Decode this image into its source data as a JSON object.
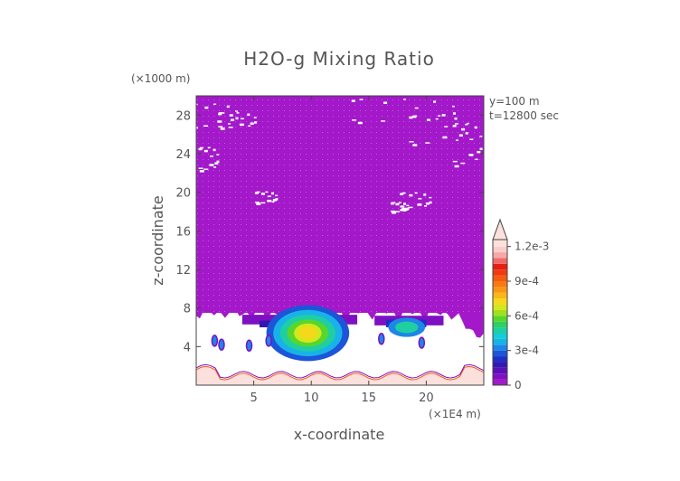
{
  "chart_data": {
    "type": "heatmap",
    "title": "H2O-g Mixing Ratio",
    "xlabel": "x-coordinate",
    "ylabel": "z-coordinate",
    "x_unit": "(×1E4 m)",
    "y_unit": "(×1000 m)",
    "annotations": [
      "y=100 m",
      "t=12800 sec"
    ],
    "x_ticks": [
      5,
      10,
      15,
      20
    ],
    "y_ticks": [
      4,
      8,
      12,
      16,
      20,
      24,
      28
    ],
    "xlim": [
      0,
      25
    ],
    "ylim": [
      0,
      30
    ],
    "colorbar": {
      "ticks": [
        "0",
        "3e-4",
        "6e-4",
        "9e-4",
        "1.2e-3"
      ],
      "tick_values": [
        0,
        0.0003,
        0.0006,
        0.0009,
        0.0012
      ],
      "min": 0,
      "max": 0.00126,
      "extend": "max",
      "levels": [
        {
          "lower": 0.0,
          "color": "#a319c9"
        },
        {
          "lower": 5e-05,
          "color": "#7e10c2"
        },
        {
          "lower": 0.0001,
          "color": "#5a10b8"
        },
        {
          "lower": 0.00015,
          "color": "#3616b0"
        },
        {
          "lower": 0.0002,
          "color": "#1e2fc8"
        },
        {
          "lower": 0.00025,
          "color": "#1c55d8"
        },
        {
          "lower": 0.0003,
          "color": "#1d86e6"
        },
        {
          "lower": 0.00035,
          "color": "#19b2e8"
        },
        {
          "lower": 0.0004,
          "color": "#17ccd6"
        },
        {
          "lower": 0.00045,
          "color": "#1fcfa2"
        },
        {
          "lower": 0.0005,
          "color": "#2fcf62"
        },
        {
          "lower": 0.00055,
          "color": "#57d62c"
        },
        {
          "lower": 0.0006,
          "color": "#9fe01f"
        },
        {
          "lower": 0.00065,
          "color": "#d6e61c"
        },
        {
          "lower": 0.0007,
          "color": "#f6d81b"
        },
        {
          "lower": 0.00075,
          "color": "#f9b718"
        },
        {
          "lower": 0.0008,
          "color": "#f99616"
        },
        {
          "lower": 0.00085,
          "color": "#f87914"
        },
        {
          "lower": 0.0009,
          "color": "#f45a12"
        },
        {
          "lower": 0.00095,
          "color": "#ee3a12"
        },
        {
          "lower": 0.001,
          "color": "#e61e15"
        },
        {
          "lower": 0.00105,
          "color": "#f06a6a"
        },
        {
          "lower": 0.0011,
          "color": "#f6a8a8"
        },
        {
          "lower": 0.00115,
          "color": "#f9cccc"
        },
        {
          "lower": 0.0012,
          "color": "#fbe0dc"
        }
      ]
    },
    "field_regions": [
      {
        "name": "upper-dry-layer",
        "z_range": [
          7.5,
          30
        ],
        "value": 2e-05,
        "note_color": "#a319c9"
      },
      {
        "name": "moist-plume-core",
        "x": 9.5,
        "z": 4.5,
        "value": 0.0007
      },
      {
        "name": "secondary-plume",
        "x": 18.5,
        "z": 5.5,
        "value": 0.0004
      },
      {
        "name": "surface-moist-layer",
        "z_range": [
          0,
          1.2
        ],
        "value": 0.0012
      }
    ]
  }
}
